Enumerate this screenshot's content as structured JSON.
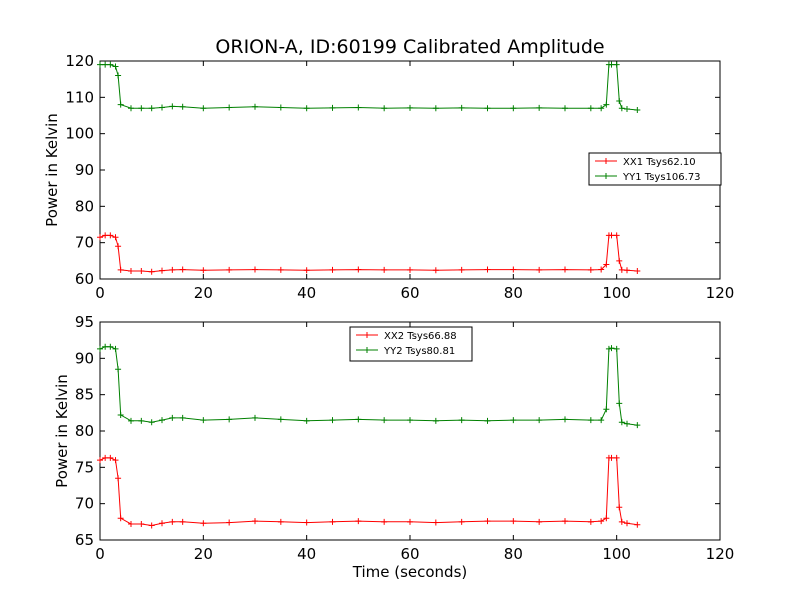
{
  "chart_data": [
    {
      "type": "line",
      "title": "ORION-A, ID:60199 Calibrated Amplitude",
      "xlabel": "",
      "ylabel": "Power in Kelvin",
      "xlim": [
        0,
        120
      ],
      "ylim": [
        60,
        120
      ],
      "xticks": [
        0,
        20,
        40,
        60,
        80,
        100,
        120
      ],
      "yticks": [
        60,
        70,
        80,
        90,
        100,
        110,
        120
      ],
      "legend_position": "center-right",
      "series": [
        {
          "name": "XX1 Tsys62.10",
          "color": "#ff0000",
          "x": [
            0,
            1,
            2,
            3,
            3.5,
            4,
            6,
            8,
            10,
            12,
            14,
            16,
            20,
            25,
            30,
            35,
            40,
            45,
            50,
            55,
            60,
            65,
            70,
            75,
            80,
            85,
            90,
            95,
            97,
            98,
            98.5,
            99,
            100,
            100.5,
            101,
            102,
            104
          ],
          "y": [
            71.5,
            72,
            72,
            71.5,
            69,
            62.5,
            62.2,
            62.2,
            62,
            62.3,
            62.5,
            62.6,
            62.4,
            62.5,
            62.6,
            62.5,
            62.4,
            62.5,
            62.6,
            62.5,
            62.5,
            62.4,
            62.5,
            62.6,
            62.6,
            62.5,
            62.6,
            62.5,
            62.6,
            64,
            72,
            72,
            72,
            65,
            62.5,
            62.4,
            62.2
          ]
        },
        {
          "name": "YY1 Tsys106.73",
          "color": "#008000",
          "x": [
            0,
            1,
            2,
            3,
            3.5,
            4,
            6,
            8,
            10,
            12,
            14,
            16,
            20,
            25,
            30,
            35,
            40,
            45,
            50,
            55,
            60,
            65,
            70,
            75,
            80,
            85,
            90,
            95,
            97,
            98,
            98.5,
            99,
            100,
            100.5,
            101,
            102,
            104
          ],
          "y": [
            119,
            119,
            119,
            118.5,
            116,
            108,
            107,
            107,
            107,
            107.2,
            107.5,
            107.4,
            107,
            107.2,
            107.4,
            107.2,
            107,
            107.1,
            107.2,
            107,
            107.1,
            107,
            107.1,
            107,
            107,
            107.1,
            107,
            107,
            107,
            108,
            119,
            119,
            119,
            109,
            107,
            106.8,
            106.5
          ]
        }
      ]
    },
    {
      "type": "line",
      "title": "",
      "xlabel": "Time (seconds)",
      "ylabel": "Power in Kelvin",
      "xlim": [
        0,
        120
      ],
      "ylim": [
        65,
        95
      ],
      "xticks": [
        0,
        20,
        40,
        60,
        80,
        100,
        120
      ],
      "yticks": [
        65,
        70,
        75,
        80,
        85,
        90,
        95
      ],
      "legend_position": "top-center",
      "series": [
        {
          "name": "XX2 Tsys66.88",
          "color": "#ff0000",
          "x": [
            0,
            1,
            2,
            3,
            3.5,
            4,
            6,
            8,
            10,
            12,
            14,
            16,
            20,
            25,
            30,
            35,
            40,
            45,
            50,
            55,
            60,
            65,
            70,
            75,
            80,
            85,
            90,
            95,
            97,
            98,
            98.5,
            99,
            100,
            100.5,
            101,
            102,
            104
          ],
          "y": [
            76,
            76.3,
            76.3,
            76,
            73.5,
            68,
            67.2,
            67.2,
            67,
            67.3,
            67.5,
            67.5,
            67.3,
            67.4,
            67.6,
            67.5,
            67.4,
            67.5,
            67.6,
            67.5,
            67.5,
            67.4,
            67.5,
            67.6,
            67.6,
            67.5,
            67.6,
            67.5,
            67.6,
            68,
            76.3,
            76.3,
            76.3,
            69.5,
            67.5,
            67.3,
            67.1
          ]
        },
        {
          "name": "YY2 Tsys80.81",
          "color": "#008000",
          "x": [
            0,
            1,
            2,
            3,
            3.5,
            4,
            6,
            8,
            10,
            12,
            14,
            16,
            20,
            25,
            30,
            35,
            40,
            45,
            50,
            55,
            60,
            65,
            70,
            75,
            80,
            85,
            90,
            95,
            97,
            98,
            98.5,
            99,
            100,
            100.5,
            101,
            102,
            104
          ],
          "y": [
            91.3,
            91.6,
            91.6,
            91.3,
            88.5,
            82.2,
            81.4,
            81.4,
            81.2,
            81.5,
            81.8,
            81.8,
            81.5,
            81.6,
            81.8,
            81.6,
            81.4,
            81.5,
            81.6,
            81.5,
            81.5,
            81.4,
            81.5,
            81.4,
            81.5,
            81.5,
            81.6,
            81.5,
            81.5,
            83,
            91.3,
            91.4,
            91.3,
            83.8,
            81.2,
            81,
            80.8
          ]
        }
      ]
    }
  ]
}
